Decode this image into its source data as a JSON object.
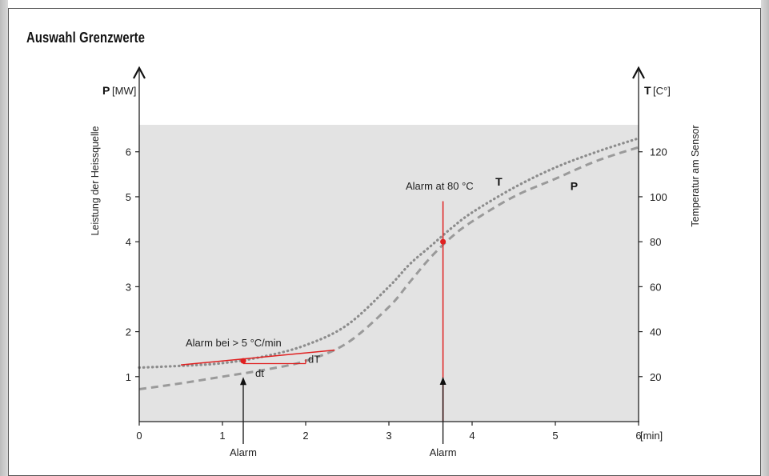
{
  "chart_data": {
    "type": "line",
    "title": "Auswahl Grenzwerte",
    "x_axis": {
      "unit_label": "[min]",
      "range": [
        0,
        6
      ],
      "ticks": [
        0,
        1,
        2,
        3,
        4,
        5,
        6
      ]
    },
    "y_left": {
      "symbol": "P",
      "unit": "[MW]",
      "title": "Leistung der Heissquelle",
      "range": [
        0,
        6.6
      ],
      "ticks": [
        1,
        2,
        3,
        4,
        5,
        6
      ]
    },
    "y_right": {
      "symbol": "T",
      "unit": "[C°]",
      "title": "Temperatur am Sensor",
      "range": [
        0,
        132
      ],
      "ticks": [
        20,
        40,
        60,
        80,
        100,
        120
      ]
    },
    "series": [
      {
        "name": "T",
        "axis": "right",
        "style": "dotted",
        "color": "#8c8c8c",
        "x": [
          0,
          0.5,
          1,
          1.5,
          2,
          2.5,
          3,
          3.25,
          3.5,
          3.75,
          4,
          4.5,
          5,
          5.5,
          6
        ],
        "y": [
          24,
          24.8,
          26,
          29,
          34,
          43,
          60,
          70,
          78,
          86,
          93,
          104,
          113,
          120,
          126
        ]
      },
      {
        "name": "P",
        "axis": "left",
        "style": "dashed",
        "color": "#9a9a9a",
        "x": [
          0,
          0.5,
          1,
          1.5,
          2,
          2.5,
          3,
          3.25,
          3.5,
          3.75,
          4,
          4.5,
          5,
          5.5,
          6
        ],
        "y": [
          0.72,
          0.85,
          1.0,
          1.15,
          1.35,
          1.75,
          2.55,
          3.1,
          3.65,
          4.1,
          4.45,
          5.0,
          5.4,
          5.8,
          6.1
        ]
      }
    ],
    "annotations": {
      "gradient_label": "Alarm bei > 5 °C/min",
      "dT_label": "dT",
      "dt_label": "dt",
      "threshold_label": "Alarm at 80 °C",
      "alarm_label_1": "Alarm",
      "alarm_label_2": "Alarm",
      "alarm1_x": 1.25,
      "alarm1_T": 27,
      "alarm2_x": 3.65,
      "alarm2_T": 80,
      "tangent_x": [
        0.5,
        2.35
      ],
      "tangent_T": [
        25.2,
        31.8
      ],
      "triangle_x": [
        1.25,
        2.0
      ],
      "triangle_T": [
        25.8,
        27.7
      ],
      "threshold_line_top_P": 4.9,
      "series_label_T_pos": [
        4.28,
        5.25
      ],
      "series_label_P_pos": [
        5.18,
        5.15
      ]
    },
    "legend": "inline",
    "grid": false,
    "colors": {
      "plot_background": "#e3e3e3",
      "alarm_red": "#e02020",
      "axis": "#222222"
    }
  }
}
